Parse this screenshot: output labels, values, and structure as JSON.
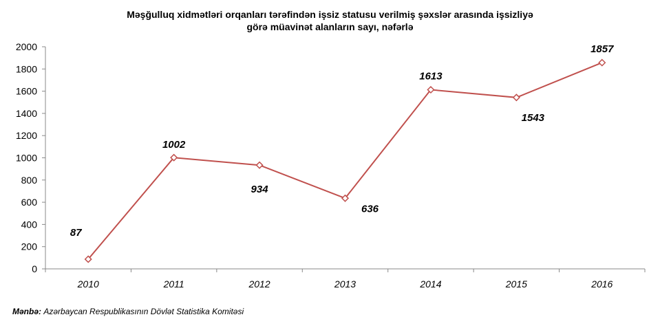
{
  "chart_data": {
    "type": "line",
    "title_lines": [
      "Məşğulluq xidmətləri orqanları tərəfindən işsiz statusu verilmiş şəxslər arasında işsizliyə",
      "görə müavinət alanların sayı, nəfərlə"
    ],
    "categories": [
      "2010",
      "2011",
      "2012",
      "2013",
      "2014",
      "2015",
      "2016"
    ],
    "series": [
      {
        "values": [
          87,
          1002,
          934,
          636,
          1613,
          1543,
          1857
        ]
      }
    ],
    "data_labels": [
      "87",
      "1002",
      "934",
      "636",
      "1613",
      "1543",
      "1857"
    ],
    "y_ticks": [
      "0",
      "200",
      "400",
      "600",
      "800",
      "1000",
      "1200",
      "1400",
      "1600",
      "1800",
      "2000"
    ],
    "ylim": [
      0,
      2000
    ],
    "y_step": 200,
    "grid": false,
    "legend": "none",
    "line_color": "#C0504D",
    "marker": "diamond-open"
  },
  "source": {
    "label": "Mənbə:",
    "text": "Azərbaycan Respublikasının Dövlət Statistika Komitəsi"
  }
}
